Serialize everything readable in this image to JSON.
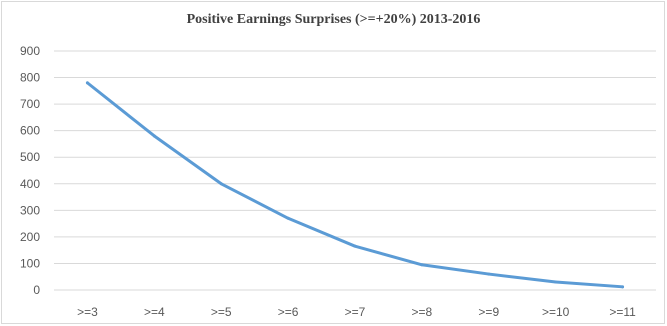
{
  "chart_data": {
    "type": "line",
    "title": "Positive Earnings Surprises (>=+20%) 2013-2016",
    "xlabel": "",
    "ylabel": "",
    "categories": [
      ">=3",
      ">=4",
      ">=5",
      ">=6",
      ">=7",
      ">=8",
      ">=9",
      ">=10",
      ">=11"
    ],
    "series": [
      {
        "values": [
          780,
          580,
          400,
          270,
          165,
          95,
          60,
          30,
          12
        ],
        "color": "#5b9bd5"
      }
    ],
    "ylim": [
      0,
      900
    ],
    "yticks": [
      0,
      100,
      200,
      300,
      400,
      500,
      600,
      700,
      800,
      900
    ],
    "grid": true,
    "legend": "none",
    "colors": {
      "line": "#5b9bd5",
      "grid": "#d9d9d9",
      "text": "#595959",
      "title": "#404040"
    }
  }
}
